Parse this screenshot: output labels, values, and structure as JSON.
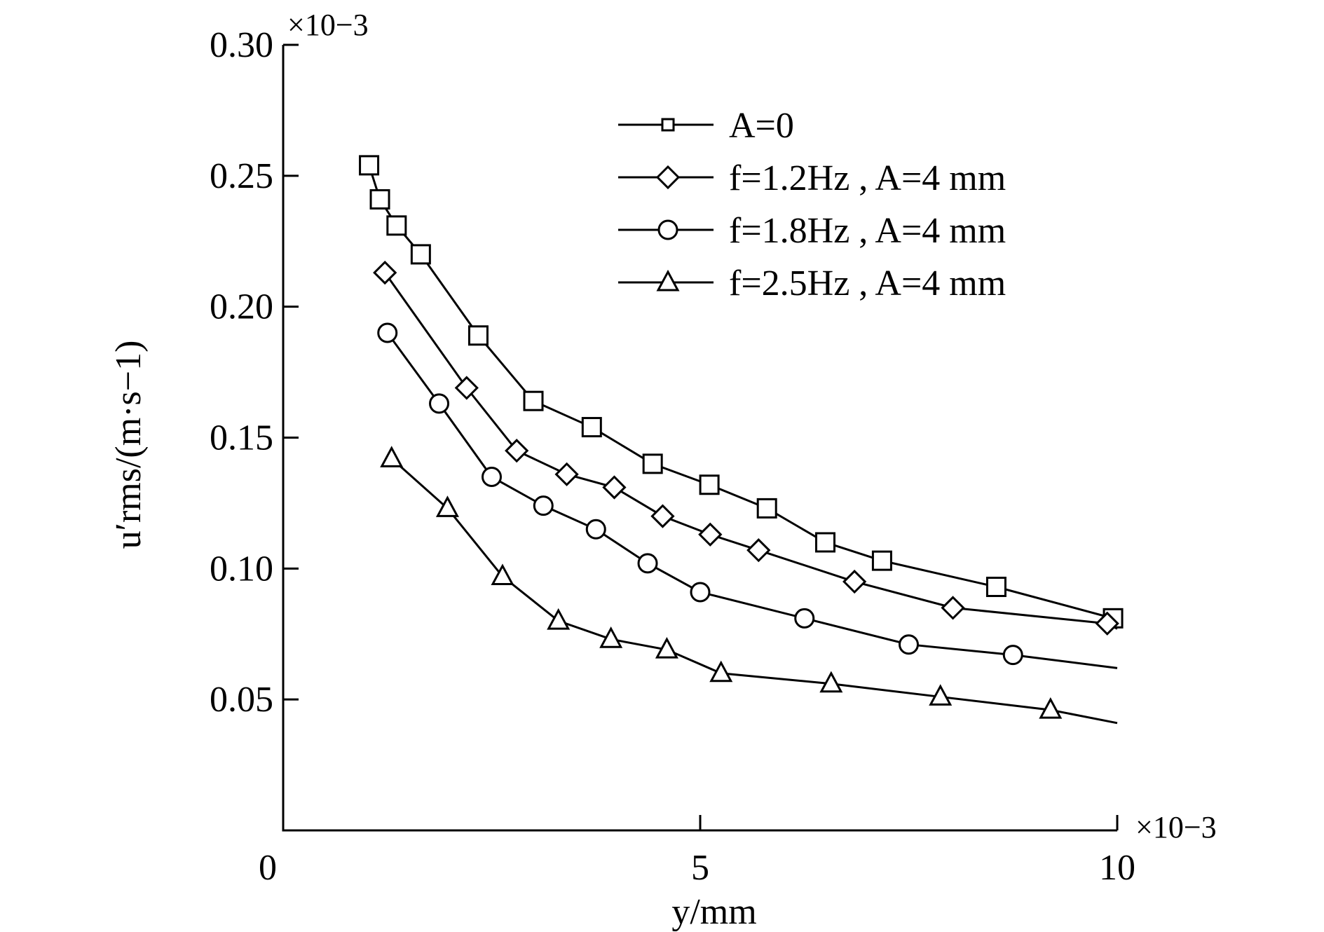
{
  "chart_data": {
    "type": "line",
    "xlabel": "y/mm",
    "ylabel": "u′rms/(m·s−1)",
    "x_multiplier": "×10−3",
    "y_multiplier": "×10−3",
    "xlim": [
      0,
      10
    ],
    "ylim": [
      0,
      0.3
    ],
    "x_ticks": [
      0,
      5,
      10
    ],
    "y_ticks": [
      0.05,
      0.1,
      0.15,
      0.2,
      0.25,
      0.3
    ],
    "x_tick_labels": [
      "0",
      "5",
      "10"
    ],
    "y_tick_labels": [
      "0.05",
      "0.10",
      "0.15",
      "0.20",
      "0.25",
      "0.30"
    ],
    "grid": false,
    "legend_position": "top-right",
    "series": [
      {
        "name": "A=0",
        "marker": "square",
        "x": [
          1.03,
          1.16,
          1.36,
          1.65,
          2.34,
          3.0,
          3.7,
          4.43,
          5.11,
          5.8,
          6.5,
          7.18,
          8.55,
          9.95
        ],
        "y": [
          0.254,
          0.241,
          0.231,
          0.22,
          0.189,
          0.164,
          0.154,
          0.14,
          0.132,
          0.123,
          0.11,
          0.103,
          0.093,
          0.081
        ]
      },
      {
        "name": "f=1.2Hz , A=4 mm",
        "marker": "diamond",
        "x": [
          1.22,
          2.2,
          2.8,
          3.4,
          3.97,
          4.55,
          5.12,
          5.7,
          6.85,
          8.03,
          9.88
        ],
        "y": [
          0.213,
          0.169,
          0.145,
          0.136,
          0.131,
          0.12,
          0.113,
          0.107,
          0.095,
          0.085,
          0.079
        ]
      },
      {
        "name": "f=1.8Hz , A=4 mm",
        "marker": "circle",
        "x": [
          1.25,
          1.87,
          2.5,
          3.12,
          3.75,
          4.37,
          5.0,
          6.25,
          7.5,
          8.75
        ],
        "y": [
          0.19,
          0.163,
          0.135,
          0.124,
          0.115,
          0.102,
          0.091,
          0.081,
          0.071,
          0.067
        ]
      },
      {
        "name": "f=2.5Hz , A=4 mm",
        "marker": "triangle",
        "x": [
          1.3,
          1.97,
          2.63,
          3.3,
          3.93,
          4.6,
          5.25,
          6.57,
          7.88,
          9.2
        ],
        "y": [
          0.142,
          0.123,
          0.097,
          0.08,
          0.073,
          0.069,
          0.06,
          0.056,
          0.051,
          0.046
        ]
      }
    ],
    "series_tails": [
      {
        "x": 10.0,
        "y": 0.081
      },
      {
        "x": 10.0,
        "y": 0.077
      },
      {
        "x": 10.0,
        "y": 0.062
      },
      {
        "x": 10.0,
        "y": 0.041
      }
    ]
  }
}
